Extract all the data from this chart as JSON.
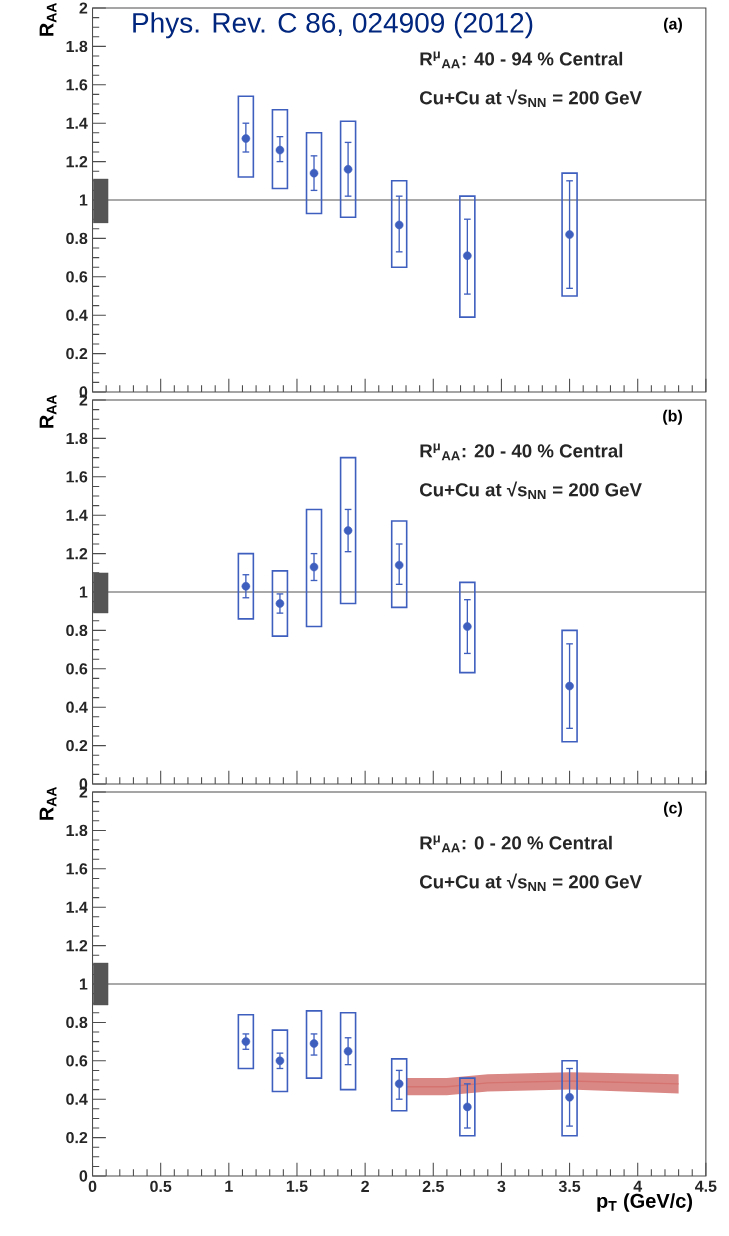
{
  "chart_data": [
    {
      "type": "scatter",
      "ylabel": "R$_{AA}$",
      "xlim": [
        0,
        4.5
      ],
      "ylim": [
        0,
        2
      ],
      "xticks": [
        0,
        0.5,
        1,
        1.5,
        2,
        2.5,
        3,
        3.5,
        4,
        4.5
      ],
      "yticks": [
        0,
        0.2,
        0.4,
        0.6,
        0.8,
        1,
        1.2,
        1.4,
        1.6,
        1.8,
        2
      ],
      "tick_labels": "y",
      "annotations": [
        "Phys. Rev. C 86, 024909 (2012)",
        "(a)",
        "R$^{μ}$$_{AA}$: 40 - 94 % Central",
        "Cu+Cu at √s$_{NN}$ = 200 GeV"
      ],
      "ref_lines": [
        {
          "axis": "y",
          "value": 1,
          "color": "#555555"
        }
      ],
      "series": [
        {
          "type": "bar",
          "color": "#555555",
          "x": [
            0.06
          ],
          "base": [
            0.88
          ],
          "values": [
            0.23
          ]
        },
        {
          "type": "bar",
          "color": "#3f5fbf",
          "x": [
            1.125,
            1.375,
            1.625,
            1.875,
            2.25,
            2.75,
            3.5
          ],
          "base": [
            1.12,
            1.06,
            0.93,
            0.91,
            0.65,
            0.39,
            0.5
          ],
          "values": [
            0.42,
            0.41,
            0.42,
            0.5,
            0.45,
            0.63,
            0.64
          ]
        },
        {
          "marker": "circle",
          "color": "#3f5fbf",
          "x": [
            1.125,
            1.375,
            1.625,
            1.875,
            2.25,
            2.75,
            3.5
          ],
          "values": [
            1.32,
            1.26,
            1.14,
            1.16,
            0.87,
            0.71,
            0.82
          ],
          "errors": [
            [
              1.25,
              1.4
            ],
            [
              1.2,
              1.33
            ],
            [
              1.05,
              1.23
            ],
            [
              1.02,
              1.3
            ],
            [
              0.73,
              1.02
            ],
            [
              0.51,
              0.9
            ],
            [
              0.54,
              1.1
            ]
          ]
        }
      ]
    },
    {
      "type": "scatter",
      "ylabel": "R$_{AA}$",
      "xlim": [
        0,
        4.5
      ],
      "ylim": [
        0,
        2
      ],
      "xticks": [
        0,
        0.5,
        1,
        1.5,
        2,
        2.5,
        3,
        3.5,
        4,
        4.5
      ],
      "yticks": [
        0,
        0.2,
        0.4,
        0.6,
        0.8,
        1,
        1.2,
        1.4,
        1.6,
        1.8,
        2
      ],
      "tick_labels": "y",
      "annotations": [
        "(b)",
        "R$^{μ}$$_{AA}$: 20 - 40 % Central",
        "Cu+Cu at √s$_{NN}$ = 200 GeV"
      ],
      "ref_lines": [
        {
          "axis": "y",
          "value": 1,
          "color": "#555555"
        }
      ],
      "series": [
        {
          "type": "bar",
          "color": "#555555",
          "x": [
            0.06
          ],
          "base": [
            0.89
          ],
          "values": [
            0.21
          ]
        },
        {
          "type": "bar",
          "color": "#3f5fbf",
          "x": [
            1.125,
            1.375,
            1.625,
            1.875,
            2.25,
            2.75,
            3.5
          ],
          "base": [
            0.86,
            0.77,
            0.82,
            0.94,
            0.92,
            0.58,
            0.22
          ],
          "values": [
            0.34,
            0.34,
            0.61,
            0.76,
            0.45,
            0.47,
            0.58
          ]
        },
        {
          "marker": "circle",
          "color": "#3f5fbf",
          "x": [
            1.125,
            1.375,
            1.625,
            1.875,
            2.25,
            2.75,
            3.5
          ],
          "values": [
            1.03,
            0.94,
            1.13,
            1.32,
            1.14,
            0.82,
            0.51
          ],
          "errors": [
            [
              0.97,
              1.09
            ],
            [
              0.89,
              0.99
            ],
            [
              1.06,
              1.2
            ],
            [
              1.21,
              1.43
            ],
            [
              1.04,
              1.25
            ],
            [
              0.68,
              0.96
            ],
            [
              0.29,
              0.73
            ]
          ]
        }
      ]
    },
    {
      "type": "scatter",
      "ylabel": "R$_{AA}$",
      "xlabel": "p$_{T}$ (GeV/c)",
      "xlim": [
        0,
        4.5
      ],
      "ylim": [
        0,
        2
      ],
      "xticks": [
        0,
        0.5,
        1,
        1.5,
        2,
        2.5,
        3,
        3.5,
        4,
        4.5
      ],
      "yticks": [
        0,
        0.2,
        0.4,
        0.6,
        0.8,
        1,
        1.2,
        1.4,
        1.6,
        1.8,
        2
      ],
      "annotations": [
        "(c)",
        "R$^{μ}$$_{AA}$: 0 - 20 % Central",
        "Cu+Cu at √s$_{NN}$ = 200 GeV"
      ],
      "ref_lines": [
        {
          "axis": "y",
          "value": 1,
          "color": "#555555"
        }
      ],
      "series": [
        {
          "type": "bar",
          "color": "#555555",
          "x": [
            0.06
          ],
          "base": [
            0.89
          ],
          "values": [
            0.22
          ]
        },
        {
          "type": "line",
          "color": "#d4736f",
          "x": [
            2.3,
            2.6,
            2.9,
            3.5,
            4.3
          ],
          "values": [
            0.465,
            0.465,
            0.485,
            0.495,
            0.48
          ],
          "lower": [
            0.42,
            0.42,
            0.44,
            0.45,
            0.43
          ],
          "upper": [
            0.51,
            0.51,
            0.53,
            0.54,
            0.53
          ]
        },
        {
          "type": "bar",
          "color": "#3f5fbf",
          "x": [
            1.125,
            1.375,
            1.625,
            1.875,
            2.25,
            2.75,
            3.5
          ],
          "base": [
            0.56,
            0.44,
            0.51,
            0.45,
            0.34,
            0.21,
            0.21
          ],
          "values": [
            0.28,
            0.32,
            0.35,
            0.4,
            0.27,
            0.3,
            0.39
          ]
        },
        {
          "marker": "circle",
          "color": "#3f5fbf",
          "x": [
            1.125,
            1.375,
            1.625,
            1.875,
            2.25,
            2.75,
            3.5
          ],
          "values": [
            0.7,
            0.6,
            0.69,
            0.65,
            0.48,
            0.36,
            0.41
          ],
          "errors": [
            [
              0.66,
              0.74
            ],
            [
              0.56,
              0.64
            ],
            [
              0.63,
              0.74
            ],
            [
              0.58,
              0.72
            ],
            [
              0.4,
              0.55
            ],
            [
              0.25,
              0.48
            ],
            [
              0.26,
              0.56
            ]
          ]
        }
      ]
    }
  ]
}
